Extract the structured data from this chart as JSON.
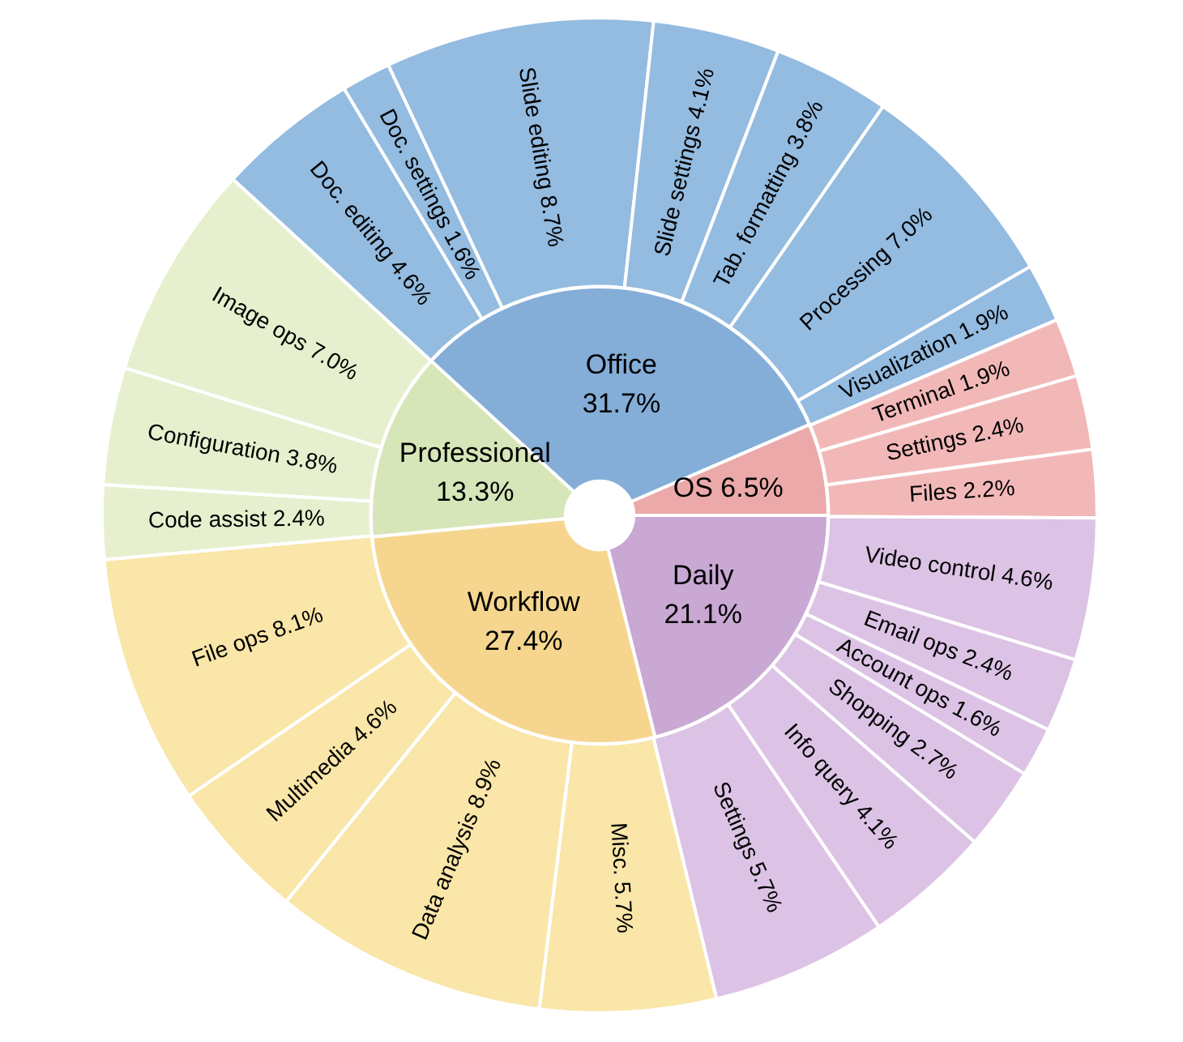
{
  "chart_data": [
    {
      "type": "donut",
      "categories": [
        "Office",
        "OS",
        "Daily",
        "Workflow",
        "Professional"
      ],
      "values": [
        31.7,
        6.5,
        21.1,
        27.4,
        13.3
      ],
      "value_labels": [
        "31.7%",
        "6.5%",
        "21.1%",
        "27.4%",
        "13.3%"
      ],
      "colors": [
        "#84aed8",
        "#eba9a9",
        "#c9a8d4",
        "#f6d68f",
        "#d6e6b8"
      ]
    },
    {
      "type": "donut",
      "categories": [
        "Doc. editing",
        "Doc. settings",
        "Slide editing",
        "Slide settings",
        "Tab. formatting",
        "Processing",
        "Visualization",
        "Terminal",
        "Settings",
        "Files",
        "Video control",
        "Email ops",
        "Account ops",
        "Shopping",
        "Info query",
        "Settings",
        "Misc.",
        "Data analysis",
        "Multimedia",
        "File ops",
        "Code assist",
        "Configuration",
        "Image ops"
      ],
      "values": [
        4.6,
        1.6,
        8.7,
        4.1,
        3.8,
        7.0,
        1.9,
        1.9,
        2.4,
        2.2,
        4.6,
        2.4,
        1.6,
        2.7,
        4.1,
        5.7,
        5.7,
        8.9,
        4.6,
        8.1,
        2.4,
        3.8,
        7.0
      ],
      "value_labels": [
        "4.6%",
        "1.6%",
        "8.7%",
        "4.1%",
        "3.8%",
        "7.0%",
        "1.9%",
        "1.9%",
        "2.4%",
        "2.2%",
        "4.6%",
        "2.4%",
        "1.6%",
        "2.7%",
        "4.1%",
        "5.7%",
        "5.7%",
        "8.9%",
        "4.6%",
        "8.1%",
        "2.4%",
        "3.8%",
        "7.0%"
      ],
      "colors": [
        "#94bbe0",
        "#94bbe0",
        "#94bbe0",
        "#94bbe0",
        "#94bbe0",
        "#94bbe0",
        "#94bbe0",
        "#f2b8b8",
        "#f2b8b8",
        "#f2b8b8",
        "#dcc3e5",
        "#dcc3e5",
        "#dcc3e5",
        "#dcc3e5",
        "#dcc3e5",
        "#dcc3e5",
        "#f9e6a8",
        "#f9e6a8",
        "#f9e6a8",
        "#f9e6a8",
        "#e6f0ce",
        "#e6f0ce",
        "#e6f0ce"
      ]
    }
  ]
}
